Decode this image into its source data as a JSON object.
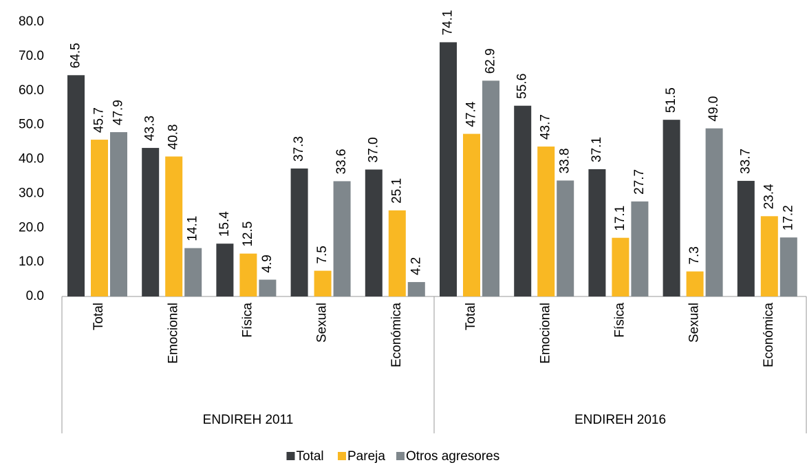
{
  "chart_data": {
    "type": "bar",
    "categories": [
      "Total",
      "Emocional",
      "Física",
      "Sexual",
      "Económica",
      "Total",
      "Emocional",
      "Física",
      "Sexual",
      "Económica"
    ],
    "group_labels": [
      "ENDIREH 2011",
      "ENDIREH 2016"
    ],
    "series": [
      {
        "name": "Total",
        "color": "#3a3d40",
        "values": [
          64.5,
          43.3,
          15.4,
          37.3,
          37.0,
          74.1,
          55.6,
          37.1,
          51.5,
          33.7
        ],
        "value_labels": [
          "64.5",
          "43.3",
          "15.4",
          "37.3",
          "37.0",
          "74.1",
          "55.6",
          "37.1",
          "51.5",
          "33.7"
        ]
      },
      {
        "name": "Pareja",
        "color": "#f9b823",
        "values": [
          45.7,
          40.8,
          12.5,
          7.5,
          25.1,
          47.4,
          43.7,
          17.1,
          7.3,
          23.4
        ],
        "value_labels": [
          "45.7",
          "40.8",
          "12.5",
          "7.5",
          "25.1",
          "47.4",
          "43.7",
          "17.1",
          "7.3",
          "23.4"
        ]
      },
      {
        "name": "Otros agresores",
        "color": "#7f878c",
        "values": [
          47.9,
          14.1,
          4.9,
          33.6,
          4.2,
          62.9,
          33.8,
          27.7,
          49.0,
          17.2
        ],
        "value_labels": [
          "47.9",
          "14.1",
          "4.9",
          "33.6",
          "4.2",
          "62.9",
          "33.8",
          "27.7",
          "49.0",
          "17.2"
        ]
      }
    ],
    "ylim": [
      0,
      80
    ],
    "yticks": [
      {
        "value": 0,
        "label": "0.0"
      },
      {
        "value": 10,
        "label": "10.0"
      },
      {
        "value": 20,
        "label": "20.0"
      },
      {
        "value": 30,
        "label": "30.0"
      },
      {
        "value": 40,
        "label": "40.0"
      },
      {
        "value": 50,
        "label": "50.0"
      },
      {
        "value": 60,
        "label": "60.0"
      },
      {
        "value": 70,
        "label": "70.0"
      },
      {
        "value": 80,
        "label": "80.0"
      }
    ],
    "legend": "bottom",
    "grid": false
  }
}
